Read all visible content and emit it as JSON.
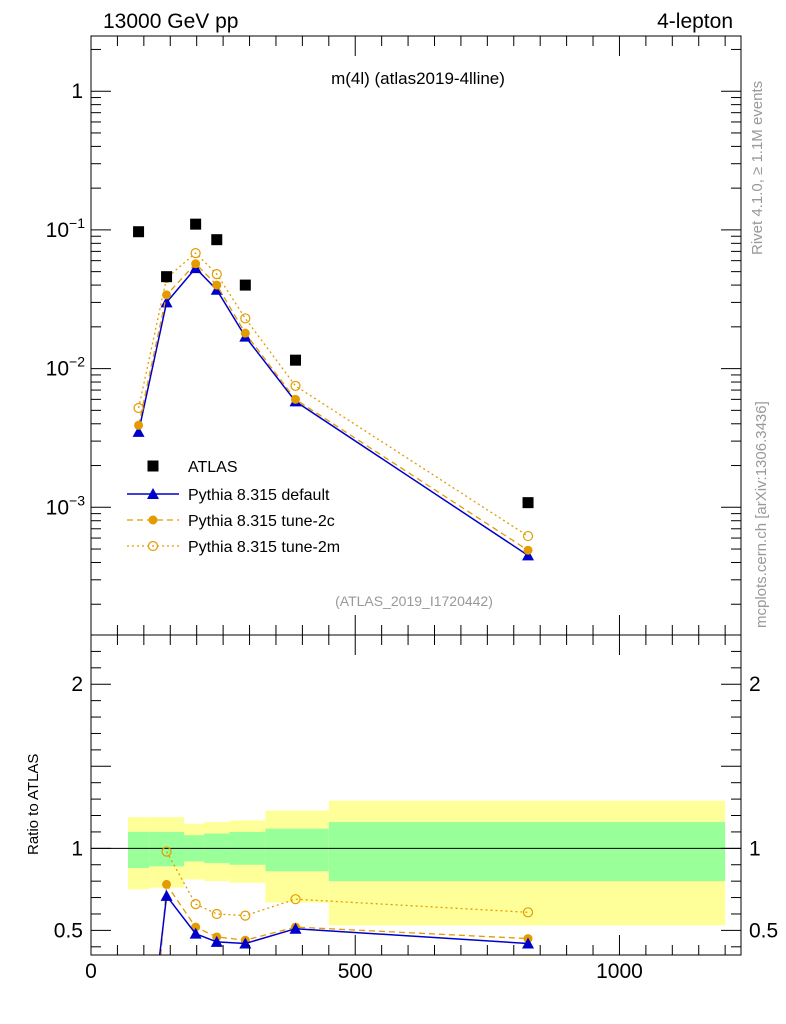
{
  "header": {
    "left": "13000 GeV pp",
    "right": "4-lepton"
  },
  "side_labels": {
    "rivet": "Rivet 4.1.0, ≥ 1.1M events",
    "mcplots": "mcplots.cern.ch [arXiv:1306.3436]"
  },
  "colors": {
    "data": "#000000",
    "default": "#0000cc",
    "tune2c": "#e39b00",
    "tune2m": "#e39b00",
    "band_inner": "#99ff99",
    "band_outer": "#ffff99",
    "watermark": "#999999"
  },
  "chart_data": {
    "type": "line",
    "title": "m(4l) (atlas2019-4lline)",
    "watermark": "(ATLAS_2019_I1720442)",
    "x_range": [
      0,
      1230
    ],
    "x_ticks": [
      {
        "value": 0,
        "label": "0"
      },
      {
        "value": 500,
        "label": "500"
      },
      {
        "value": 1000,
        "label": "1000"
      }
    ],
    "main": {
      "yscale": "log",
      "ylim": [
        0.00012,
        2.5
      ],
      "y_ticks": [
        {
          "value": 1,
          "label": "1"
        },
        {
          "value": 0.1,
          "label": "10",
          "exp": "−1"
        },
        {
          "value": 0.01,
          "label": "10",
          "exp": "−2"
        },
        {
          "value": 0.001,
          "label": "10",
          "exp": "−3"
        }
      ],
      "series": [
        {
          "name": "ATLAS",
          "style": "data",
          "x": [
            90,
            143,
            198,
            238,
            292,
            387,
            827
          ],
          "y": [
            0.097,
            0.046,
            0.11,
            0.085,
            0.04,
            0.0115,
            0.00108
          ]
        },
        {
          "name": "Pythia 8.315 default",
          "style": "default",
          "x": [
            90,
            143,
            198,
            238,
            292,
            387,
            827
          ],
          "y": [
            0.0035,
            0.03,
            0.053,
            0.037,
            0.017,
            0.0058,
            0.00045
          ]
        },
        {
          "name": "Pythia 8.315 tune-2c",
          "style": "tune2c",
          "x": [
            90,
            143,
            198,
            238,
            292,
            387,
            827
          ],
          "y": [
            0.0039,
            0.034,
            0.057,
            0.04,
            0.018,
            0.006,
            0.00049
          ]
        },
        {
          "name": "Pythia 8.315 tune-2m",
          "style": "tune2m",
          "x": [
            90,
            143,
            198,
            238,
            292,
            387,
            827
          ],
          "y": [
            0.0052,
            0.045,
            0.068,
            0.048,
            0.023,
            0.0075,
            0.00062
          ]
        }
      ]
    },
    "ratio": {
      "ylabel": "Ratio to ATLAS",
      "ylim": [
        0.35,
        2.3
      ],
      "y_ticks": [
        {
          "value": 0.5,
          "label": "0.5"
        },
        {
          "value": 1,
          "label": "1"
        },
        {
          "value": 2,
          "label": "2"
        }
      ],
      "bins": [
        {
          "lo": 70,
          "hi": 110,
          "inner": [
            0.88,
            1.1
          ],
          "outer": [
            0.75,
            1.19
          ]
        },
        {
          "lo": 110,
          "hi": 176,
          "inner": [
            0.89,
            1.1
          ],
          "outer": [
            0.76,
            1.19
          ]
        },
        {
          "lo": 176,
          "hi": 214,
          "inner": [
            0.92,
            1.08
          ],
          "outer": [
            0.81,
            1.15
          ]
        },
        {
          "lo": 214,
          "hi": 262,
          "inner": [
            0.91,
            1.09
          ],
          "outer": [
            0.8,
            1.16
          ]
        },
        {
          "lo": 262,
          "hi": 330,
          "inner": [
            0.9,
            1.1
          ],
          "outer": [
            0.79,
            1.17
          ]
        },
        {
          "lo": 330,
          "hi": 450,
          "inner": [
            0.86,
            1.12
          ],
          "outer": [
            0.67,
            1.23
          ]
        },
        {
          "lo": 450,
          "hi": 1200,
          "inner": [
            0.8,
            1.16
          ],
          "outer": [
            0.53,
            1.29
          ]
        }
      ],
      "series": [
        {
          "name": "Pythia 8.315 default",
          "style": "default",
          "x": [
            143,
            198,
            238,
            292,
            387,
            827
          ],
          "y": [
            0.71,
            0.48,
            0.43,
            0.42,
            0.51,
            0.42
          ],
          "enter_from_below_x": 130
        },
        {
          "name": "Pythia 8.315 tune-2c",
          "style": "tune2c",
          "x": [
            143,
            198,
            238,
            292,
            387,
            827
          ],
          "y": [
            0.78,
            0.52,
            0.46,
            0.44,
            0.52,
            0.45
          ],
          "enter_from_below_x": 132
        },
        {
          "name": "Pythia 8.315 tune-2m",
          "style": "tune2m",
          "x": [
            143,
            198,
            238,
            292,
            387,
            827
          ],
          "y": [
            0.98,
            0.66,
            0.6,
            0.59,
            0.69,
            0.61
          ]
        }
      ]
    }
  }
}
